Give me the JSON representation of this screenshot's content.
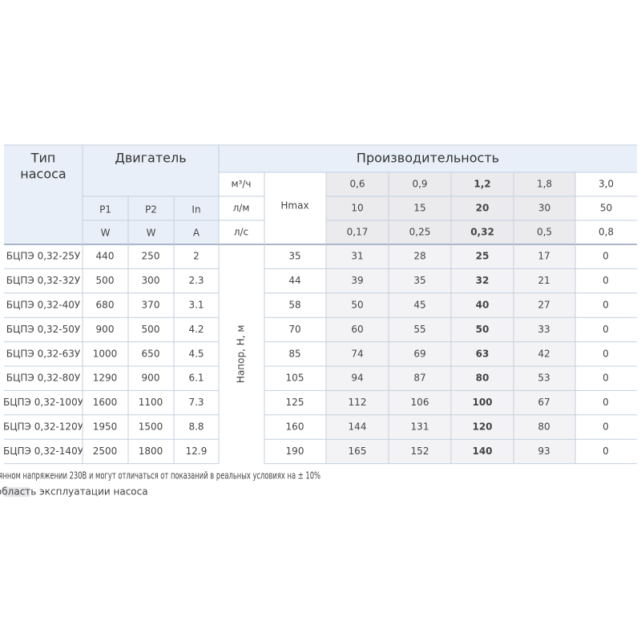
{
  "header": {
    "type_label_lines": [
      "Тип",
      "насоса"
    ],
    "engine_label": "Двигатель",
    "performance_label": "Производительность",
    "hmax_label": "Hmax",
    "head_label": "Напор, Н, м",
    "engine_columns": [
      [
        "P1",
        "W"
      ],
      [
        "P2",
        "W"
      ],
      [
        "In",
        "A"
      ]
    ],
    "flow_rows": [
      {
        "unit": "м³/ч",
        "values": [
          "0,6",
          "0,9",
          "1,2",
          "1,8",
          "3,0"
        ]
      },
      {
        "unit": "л/м",
        "values": [
          "10",
          "15",
          "20",
          "30",
          "50"
        ]
      },
      {
        "unit": "л/с",
        "values": [
          "0,17",
          "0,25",
          "0,32",
          "0,5",
          "0,8"
        ]
      }
    ]
  },
  "table": {
    "rows": [
      [
        "БЦПЭ 0,32-25У",
        "440",
        "250",
        "2",
        "35",
        "31",
        "28",
        "25",
        "17",
        "0"
      ],
      [
        "БЦПЭ 0,32-32У",
        "500",
        "300",
        "2.3",
        "44",
        "39",
        "35",
        "32",
        "21",
        "0"
      ],
      [
        "БЦПЭ 0,32-40У",
        "680",
        "370",
        "3.1",
        "58",
        "50",
        "45",
        "40",
        "27",
        "0"
      ],
      [
        "БЦПЭ 0,32-50У",
        "900",
        "500",
        "4.2",
        "70",
        "60",
        "55",
        "50",
        "33",
        "0"
      ],
      [
        "БЦПЭ 0,32-63У",
        "1000",
        "650",
        "4.5",
        "85",
        "74",
        "69",
        "63",
        "42",
        "0"
      ],
      [
        "БЦПЭ 0,32-80У",
        "1290",
        "900",
        "6.1",
        "105",
        "94",
        "87",
        "80",
        "53",
        "0"
      ],
      [
        "БЦПЭ 0,32-100У",
        "1600",
        "1100",
        "7.3",
        "125",
        "112",
        "106",
        "100",
        "67",
        "0"
      ],
      [
        "БЦПЭ 0,32-120У",
        "1950",
        "1500",
        "8.8",
        "160",
        "144",
        "131",
        "120",
        "80",
        "0"
      ],
      [
        "БЦПЭ 0,32-140У",
        "2500",
        "1800",
        "12.9",
        "190",
        "165",
        "152",
        "140",
        "93",
        "0"
      ]
    ]
  },
  "footnote": "Представленные в таблицах параметры  получены в лабораторных условиях при постоянном напряжении 230В и могут отличаться от показаний в реальных условиях на ± 10%",
  "legend_text": "- оптимальная область эксплуатации насоса"
}
